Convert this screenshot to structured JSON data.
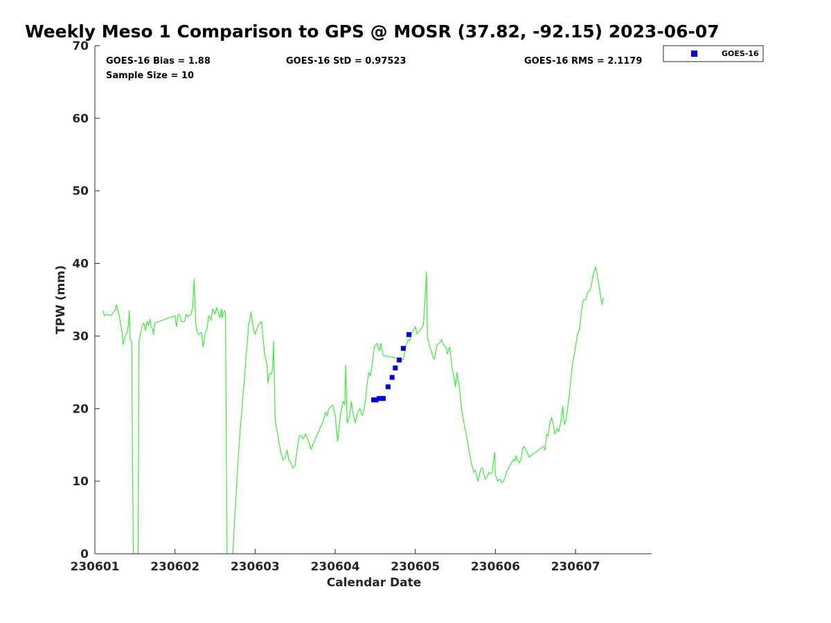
{
  "chart_data": {
    "type": "line",
    "title": "Weekly Meso 1 Comparison to GPS @ MOSR (37.82, -92.15) 2023-06-07",
    "xlabel": "Calendar Date",
    "ylabel": "TPW (mm)",
    "xlim": [
      0,
      6.95
    ],
    "ylim": [
      0,
      70
    ],
    "x_ticks": [
      {
        "pos": 0,
        "label": "230601"
      },
      {
        "pos": 1,
        "label": "230602"
      },
      {
        "pos": 2,
        "label": "230603"
      },
      {
        "pos": 3,
        "label": "230604"
      },
      {
        "pos": 4,
        "label": "230605"
      },
      {
        "pos": 5,
        "label": "230606"
      },
      {
        "pos": 6,
        "label": "230607"
      }
    ],
    "y_ticks": [
      0,
      10,
      20,
      30,
      40,
      50,
      60,
      70
    ],
    "grid": false,
    "legend": "top-right (outside plot)",
    "stats": {
      "bias": "GOES-16 Bias = 1.88",
      "std": "GOES-16 StD = 0.97523",
      "rms": "GOES-16 RMS = 2.1179",
      "sample": "Sample Size = 10"
    },
    "series": [
      {
        "kind": "line",
        "color": "#33ee33",
        "points": [
          [
            0.1,
            33.5
          ],
          [
            0.12,
            32.8
          ],
          [
            0.15,
            33.0
          ],
          [
            0.2,
            32.8
          ],
          [
            0.25,
            33.5
          ],
          [
            0.27,
            34.3
          ],
          [
            0.3,
            33.0
          ],
          [
            0.34,
            30.5
          ],
          [
            0.35,
            28.8
          ],
          [
            0.38,
            30.0
          ],
          [
            0.4,
            30.5
          ],
          [
            0.42,
            31.5
          ],
          [
            0.43,
            33.5
          ],
          [
            0.44,
            29.5
          ],
          [
            0.46,
            29.3
          ],
          [
            0.48,
            0
          ],
          [
            0.54,
            0
          ],
          [
            0.55,
            29.3
          ],
          [
            0.57,
            30.2
          ],
          [
            0.59,
            31.5
          ],
          [
            0.61,
            31.8
          ],
          [
            0.63,
            30.8
          ],
          [
            0.65,
            32.0
          ],
          [
            0.67,
            31.5
          ],
          [
            0.69,
            32.3
          ],
          [
            0.7,
            31.2
          ],
          [
            0.72,
            31.0
          ],
          [
            0.73,
            30.2
          ],
          [
            0.75,
            31.8
          ],
          [
            1.0,
            32.8
          ],
          [
            1.02,
            31.3
          ],
          [
            1.04,
            33.0
          ],
          [
            1.06,
            32.9
          ],
          [
            1.08,
            32.0
          ],
          [
            1.12,
            32.0
          ],
          [
            1.14,
            33.0
          ],
          [
            1.16,
            32.7
          ],
          [
            1.2,
            33.0
          ],
          [
            1.22,
            33.8
          ],
          [
            1.24,
            37.8
          ],
          [
            1.26,
            31.5
          ],
          [
            1.28,
            30.5
          ],
          [
            1.3,
            30.2
          ],
          [
            1.33,
            30.5
          ],
          [
            1.35,
            28.5
          ],
          [
            1.38,
            30.5
          ],
          [
            1.4,
            31.0
          ],
          [
            1.42,
            32.8
          ],
          [
            1.45,
            32.2
          ],
          [
            1.47,
            33.7
          ],
          [
            1.5,
            33.0
          ],
          [
            1.52,
            33.9
          ],
          [
            1.54,
            33.2
          ],
          [
            1.56,
            32.5
          ],
          [
            1.58,
            33.7
          ],
          [
            1.59,
            32.5
          ],
          [
            1.6,
            33.2
          ],
          [
            1.62,
            33.5
          ],
          [
            1.63,
            33.0
          ],
          [
            1.65,
            0
          ],
          [
            1.72,
            0
          ],
          [
            1.8,
            15
          ],
          [
            1.92,
            31.5
          ],
          [
            1.95,
            33.3
          ],
          [
            1.97,
            31.5
          ],
          [
            2.0,
            30.2
          ],
          [
            2.04,
            31.5
          ],
          [
            2.08,
            32.0
          ],
          [
            2.12,
            27.5
          ],
          [
            2.15,
            26.0
          ],
          [
            2.16,
            23.5
          ],
          [
            2.18,
            24.8
          ],
          [
            2.2,
            24.8
          ],
          [
            2.22,
            25.3
          ],
          [
            2.23,
            29.3
          ],
          [
            2.25,
            18.5
          ],
          [
            2.28,
            16.5
          ],
          [
            2.32,
            14.0
          ],
          [
            2.35,
            12.9
          ],
          [
            2.38,
            13.3
          ],
          [
            2.4,
            14.3
          ],
          [
            2.42,
            13.0
          ],
          [
            2.45,
            12.5
          ],
          [
            2.47,
            11.8
          ],
          [
            2.5,
            12.2
          ],
          [
            2.52,
            14.0
          ],
          [
            2.55,
            16.2
          ],
          [
            2.57,
            16.3
          ],
          [
            2.6,
            15.8
          ],
          [
            2.63,
            16.5
          ],
          [
            2.65,
            16.0
          ],
          [
            2.7,
            14.4
          ],
          [
            2.75,
            15.8
          ],
          [
            2.8,
            17.0
          ],
          [
            2.85,
            18.3
          ],
          [
            2.88,
            19.5
          ],
          [
            2.9,
            19.0
          ],
          [
            2.92,
            20.0
          ],
          [
            2.95,
            20.3
          ],
          [
            2.97,
            20.5
          ],
          [
            3.0,
            19.0
          ],
          [
            3.03,
            15.5
          ],
          [
            3.07,
            19.5
          ],
          [
            3.1,
            21.0
          ],
          [
            3.12,
            20.5
          ],
          [
            3.13,
            26.0
          ],
          [
            3.15,
            18.0
          ],
          [
            3.18,
            19.0
          ],
          [
            3.2,
            21.0
          ],
          [
            3.22,
            19.5
          ],
          [
            3.25,
            18.0
          ],
          [
            3.28,
            19.5
          ],
          [
            3.31,
            20.0
          ],
          [
            3.34,
            19.0
          ],
          [
            3.37,
            20.5
          ],
          [
            3.4,
            23.5
          ],
          [
            3.42,
            25.0
          ],
          [
            3.44,
            24.5
          ],
          [
            3.46,
            26.0
          ],
          [
            3.49,
            28.5
          ],
          [
            3.52,
            29.0
          ],
          [
            3.55,
            28.0
          ],
          [
            3.57,
            29.0
          ],
          [
            3.6,
            27.3
          ],
          [
            3.85,
            26.8
          ],
          [
            3.88,
            28.5
          ],
          [
            3.91,
            29.5
          ],
          [
            3.93,
            29.3
          ],
          [
            3.96,
            30.5
          ],
          [
            4.0,
            31.3
          ],
          [
            4.02,
            30.3
          ],
          [
            4.06,
            30.8
          ],
          [
            4.1,
            31.5
          ],
          [
            4.12,
            34.8
          ],
          [
            4.14,
            38.8
          ],
          [
            4.15,
            30.0
          ],
          [
            4.18,
            28.5
          ],
          [
            4.2,
            28.0
          ],
          [
            4.22,
            27.0
          ],
          [
            4.24,
            26.8
          ],
          [
            4.27,
            28.8
          ],
          [
            4.3,
            29.0
          ],
          [
            4.33,
            29.5
          ],
          [
            4.35,
            28.8
          ],
          [
            4.38,
            28.5
          ],
          [
            4.4,
            27.5
          ],
          [
            4.43,
            28.5
          ],
          [
            4.46,
            25.5
          ],
          [
            4.48,
            24.5
          ],
          [
            4.5,
            23.0
          ],
          [
            4.52,
            25.0
          ],
          [
            4.55,
            23.0
          ],
          [
            4.57,
            20.5
          ],
          [
            4.6,
            18.5
          ],
          [
            4.65,
            15.5
          ],
          [
            4.7,
            12.5
          ],
          [
            4.73,
            11.2
          ],
          [
            4.75,
            11.5
          ],
          [
            4.78,
            10.0
          ],
          [
            4.82,
            11.8
          ],
          [
            4.84,
            11.8
          ],
          [
            4.87,
            10.3
          ],
          [
            4.89,
            10.5
          ],
          [
            4.92,
            11.2
          ],
          [
            4.94,
            11.0
          ],
          [
            4.96,
            11.3
          ],
          [
            4.99,
            14.0
          ],
          [
            5.0,
            10.8
          ],
          [
            5.03,
            10.0
          ],
          [
            5.05,
            10.3
          ],
          [
            5.08,
            9.8
          ],
          [
            5.1,
            10.0
          ],
          [
            5.12,
            10.5
          ],
          [
            5.14,
            11.3
          ],
          [
            5.17,
            12.0
          ],
          [
            5.2,
            12.5
          ],
          [
            5.22,
            13.0
          ],
          [
            5.24,
            12.8
          ],
          [
            5.26,
            13.5
          ],
          [
            5.27,
            13.0
          ],
          [
            5.3,
            12.5
          ],
          [
            5.32,
            13.0
          ],
          [
            5.34,
            14.5
          ],
          [
            5.36,
            14.8
          ],
          [
            5.38,
            14.3
          ],
          [
            5.4,
            13.9
          ],
          [
            5.42,
            13.3
          ],
          [
            5.6,
            14.8
          ],
          [
            5.62,
            14.3
          ],
          [
            5.64,
            16.5
          ],
          [
            5.66,
            16.2
          ],
          [
            5.67,
            17.5
          ],
          [
            5.7,
            18.8
          ],
          [
            5.72,
            18.0
          ],
          [
            5.74,
            16.5
          ],
          [
            5.77,
            17.3
          ],
          [
            5.79,
            16.8
          ],
          [
            5.82,
            18.5
          ],
          [
            5.84,
            20.3
          ],
          [
            5.86,
            17.8
          ],
          [
            5.88,
            18.3
          ],
          [
            5.9,
            20.0
          ],
          [
            5.92,
            21.5
          ],
          [
            5.95,
            25.0
          ],
          [
            5.97,
            26.5
          ],
          [
            6.0,
            28.5
          ],
          [
            6.02,
            30.0
          ],
          [
            6.05,
            31.0
          ],
          [
            6.08,
            34.0
          ],
          [
            6.1,
            35.0
          ],
          [
            6.13,
            35.0
          ],
          [
            6.15,
            36.0
          ],
          [
            6.18,
            36.3
          ],
          [
            6.2,
            37.0
          ],
          [
            6.22,
            38.5
          ],
          [
            6.25,
            39.5
          ],
          [
            6.27,
            38.5
          ],
          [
            6.3,
            36.5
          ],
          [
            6.33,
            34.3
          ],
          [
            6.35,
            35.3
          ]
        ]
      },
      {
        "kind": "scatter",
        "name": "GOES-16",
        "color": "#0000ee",
        "points": [
          [
            3.48,
            21.2
          ],
          [
            3.51,
            21.2
          ],
          [
            3.55,
            21.4
          ],
          [
            3.6,
            21.4
          ],
          [
            3.66,
            23.0
          ],
          [
            3.71,
            24.3
          ],
          [
            3.75,
            25.6
          ],
          [
            3.8,
            26.7
          ],
          [
            3.85,
            28.3
          ],
          [
            3.92,
            30.2
          ]
        ]
      }
    ]
  }
}
